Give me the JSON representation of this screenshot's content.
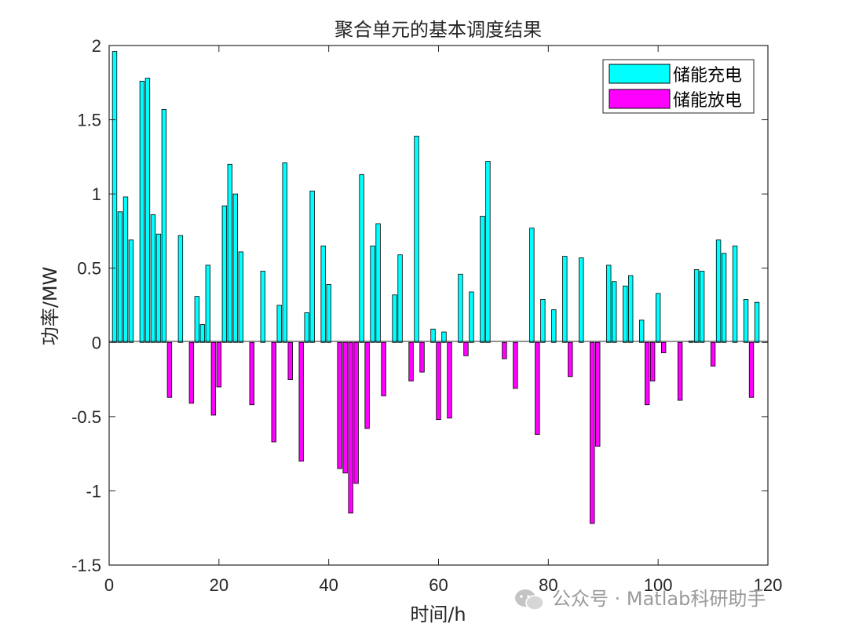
{
  "chart_data": {
    "type": "bar",
    "title": "聚合单元的基本调度结果",
    "xlabel": "时间/h",
    "ylabel": "功率/MW",
    "xlim": [
      0,
      120
    ],
    "ylim": [
      -1.5,
      2
    ],
    "xticks": [
      0,
      20,
      40,
      60,
      80,
      100,
      120
    ],
    "yticks": [
      2,
      1.5,
      1,
      0.5,
      0,
      -0.5,
      -1,
      -1.5
    ],
    "ytick_labels": [
      "2",
      "1.5",
      "1",
      "0.5",
      "0",
      "-0.5",
      "-1",
      "-1.5"
    ],
    "grid": false,
    "legend_position": "top-right",
    "series": [
      {
        "name": "储能充电",
        "color": "#00ffff",
        "points": [
          [
            1,
            1.96
          ],
          [
            2,
            0.88
          ],
          [
            3,
            0.98
          ],
          [
            4,
            0.69
          ],
          [
            6,
            1.76
          ],
          [
            7,
            1.78
          ],
          [
            8,
            0.86
          ],
          [
            9,
            0.73
          ],
          [
            10,
            1.57
          ],
          [
            13,
            0.72
          ],
          [
            16,
            0.31
          ],
          [
            17,
            0.12
          ],
          [
            18,
            0.52
          ],
          [
            21,
            0.92
          ],
          [
            22,
            1.2
          ],
          [
            23,
            1.0
          ],
          [
            24,
            0.61
          ],
          [
            28,
            0.48
          ],
          [
            31,
            0.25
          ],
          [
            32,
            1.21
          ],
          [
            36,
            0.2
          ],
          [
            37,
            1.02
          ],
          [
            39,
            0.65
          ],
          [
            40,
            0.39
          ],
          [
            46,
            1.13
          ],
          [
            48,
            0.65
          ],
          [
            49,
            0.8
          ],
          [
            52,
            0.32
          ],
          [
            53,
            0.59
          ],
          [
            56,
            1.39
          ],
          [
            59,
            0.09
          ],
          [
            61,
            0.07
          ],
          [
            64,
            0.46
          ],
          [
            66,
            0.34
          ],
          [
            68,
            0.85
          ],
          [
            69,
            1.22
          ],
          [
            77,
            0.77
          ],
          [
            79,
            0.29
          ],
          [
            81,
            0.22
          ],
          [
            83,
            0.58
          ],
          [
            86,
            0.57
          ],
          [
            91,
            0.52
          ],
          [
            92,
            0.41
          ],
          [
            94,
            0.38
          ],
          [
            95,
            0.45
          ],
          [
            97,
            0.15
          ],
          [
            100,
            0.33
          ],
          [
            106,
            0.01
          ],
          [
            107,
            0.49
          ],
          [
            108,
            0.48
          ],
          [
            111,
            0.69
          ],
          [
            112,
            0.6
          ],
          [
            114,
            0.65
          ],
          [
            116,
            0.29
          ],
          [
            118,
            0.27
          ]
        ]
      },
      {
        "name": "储能放电",
        "color": "#ff00ff",
        "points": [
          [
            11,
            -0.37
          ],
          [
            15,
            -0.41
          ],
          [
            19,
            -0.49
          ],
          [
            20,
            -0.3
          ],
          [
            26,
            -0.42
          ],
          [
            30,
            -0.67
          ],
          [
            33,
            -0.25
          ],
          [
            35,
            -0.8
          ],
          [
            42,
            -0.85
          ],
          [
            43,
            -0.88
          ],
          [
            44,
            -1.15
          ],
          [
            45,
            -0.95
          ],
          [
            47,
            -0.58
          ],
          [
            50,
            -0.36
          ],
          [
            55,
            -0.26
          ],
          [
            57,
            -0.2
          ],
          [
            60,
            -0.52
          ],
          [
            62,
            -0.51
          ],
          [
            65,
            -0.09
          ],
          [
            72,
            -0.11
          ],
          [
            74,
            -0.31
          ],
          [
            78,
            -0.62
          ],
          [
            84,
            -0.23
          ],
          [
            88,
            -1.22
          ],
          [
            89,
            -0.7
          ],
          [
            98,
            -0.42
          ],
          [
            99,
            -0.26
          ],
          [
            101,
            -0.07
          ],
          [
            104,
            -0.39
          ],
          [
            110,
            -0.16
          ],
          [
            117,
            -0.37
          ]
        ]
      }
    ]
  },
  "watermark": "公众号 · Matlab科研助手"
}
